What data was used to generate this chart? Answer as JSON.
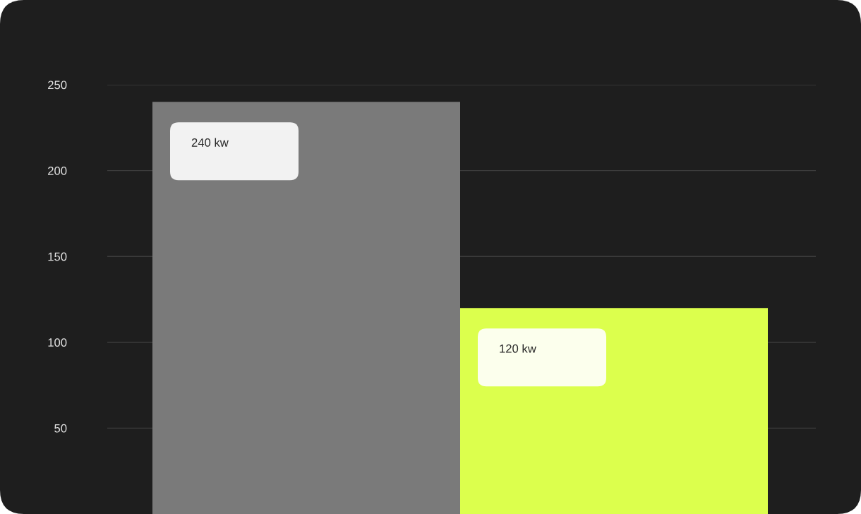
{
  "chart_data": {
    "type": "bar",
    "categories": [
      null,
      null
    ],
    "values": [
      240,
      120
    ],
    "colors": [
      "#7a7a7a",
      "#dcff4d"
    ],
    "value_labels": [
      "240 kw",
      "120 kw"
    ],
    "ylim": [
      0,
      250
    ],
    "yticks": [
      50,
      100,
      150,
      200,
      250
    ],
    "grid": "y",
    "tick_labels": "y"
  }
}
